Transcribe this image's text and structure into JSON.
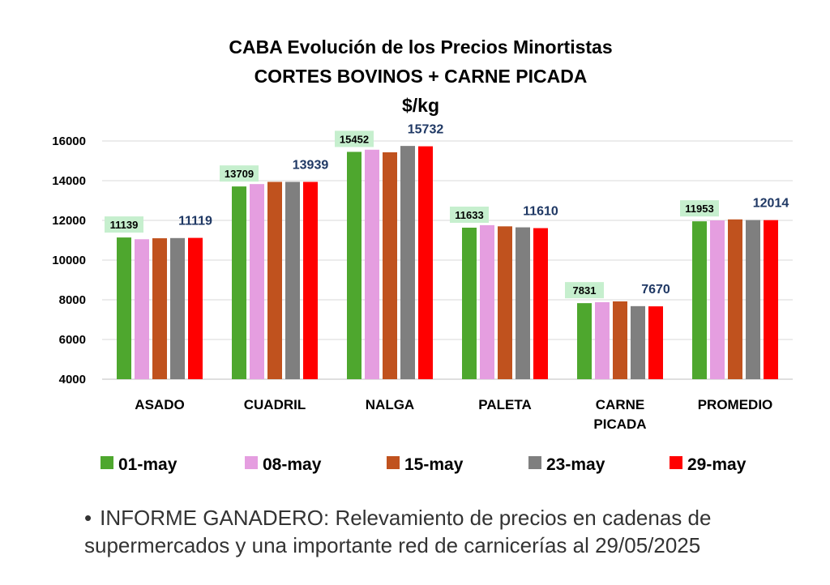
{
  "chart_data": {
    "type": "bar",
    "title_lines": [
      "CABA Evolución de los Precios Minortistas",
      "CORTES BOVINOS + CARNE PICADA"
    ],
    "unit": "$/kg",
    "categories": [
      "ASADO",
      "CUADRIL",
      "NALGA",
      "PALETA",
      "CARNE PICADA",
      "PROMEDIO"
    ],
    "category_lines": [
      [
        "ASADO"
      ],
      [
        "CUADRIL"
      ],
      [
        "NALGA"
      ],
      [
        "PALETA"
      ],
      [
        "CARNE",
        "PICADA"
      ],
      [
        "PROMEDIO"
      ]
    ],
    "series": [
      {
        "name": "01-may",
        "color": "#4ea72e",
        "values": [
          11139,
          13709,
          15452,
          11633,
          7831,
          11953
        ]
      },
      {
        "name": "08-may",
        "color": "#e59ee0",
        "values": [
          11050,
          13830,
          15560,
          11760,
          7880,
          12000
        ]
      },
      {
        "name": "15-may",
        "color": "#c0521e",
        "values": [
          11100,
          13940,
          15430,
          11700,
          7920,
          12050
        ]
      },
      {
        "name": "23-may",
        "color": "#7f7f7f",
        "values": [
          11110,
          13940,
          15750,
          11650,
          7680,
          12020
        ]
      },
      {
        "name": "29-may",
        "color": "#ff0000",
        "values": [
          11119,
          13939,
          15732,
          11610,
          7670,
          12014
        ]
      }
    ],
    "labeled_values_first": [
      11139,
      13709,
      15452,
      11633,
      7831,
      11953
    ],
    "labeled_values_last": [
      11119,
      13939,
      15732,
      11610,
      7670,
      12014
    ],
    "yticks": [
      "4000",
      "6000",
      "8000",
      "10000",
      "12000",
      "14000",
      "16000"
    ],
    "ylim": [
      4000,
      16000
    ],
    "grid": true,
    "legend_position": "bottom"
  },
  "note": {
    "bullet": "•",
    "text": "INFORME GANADERO: Relevamiento de precios en cadenas de supermercados y una importante red de carnicerías al 29/05/2025"
  }
}
